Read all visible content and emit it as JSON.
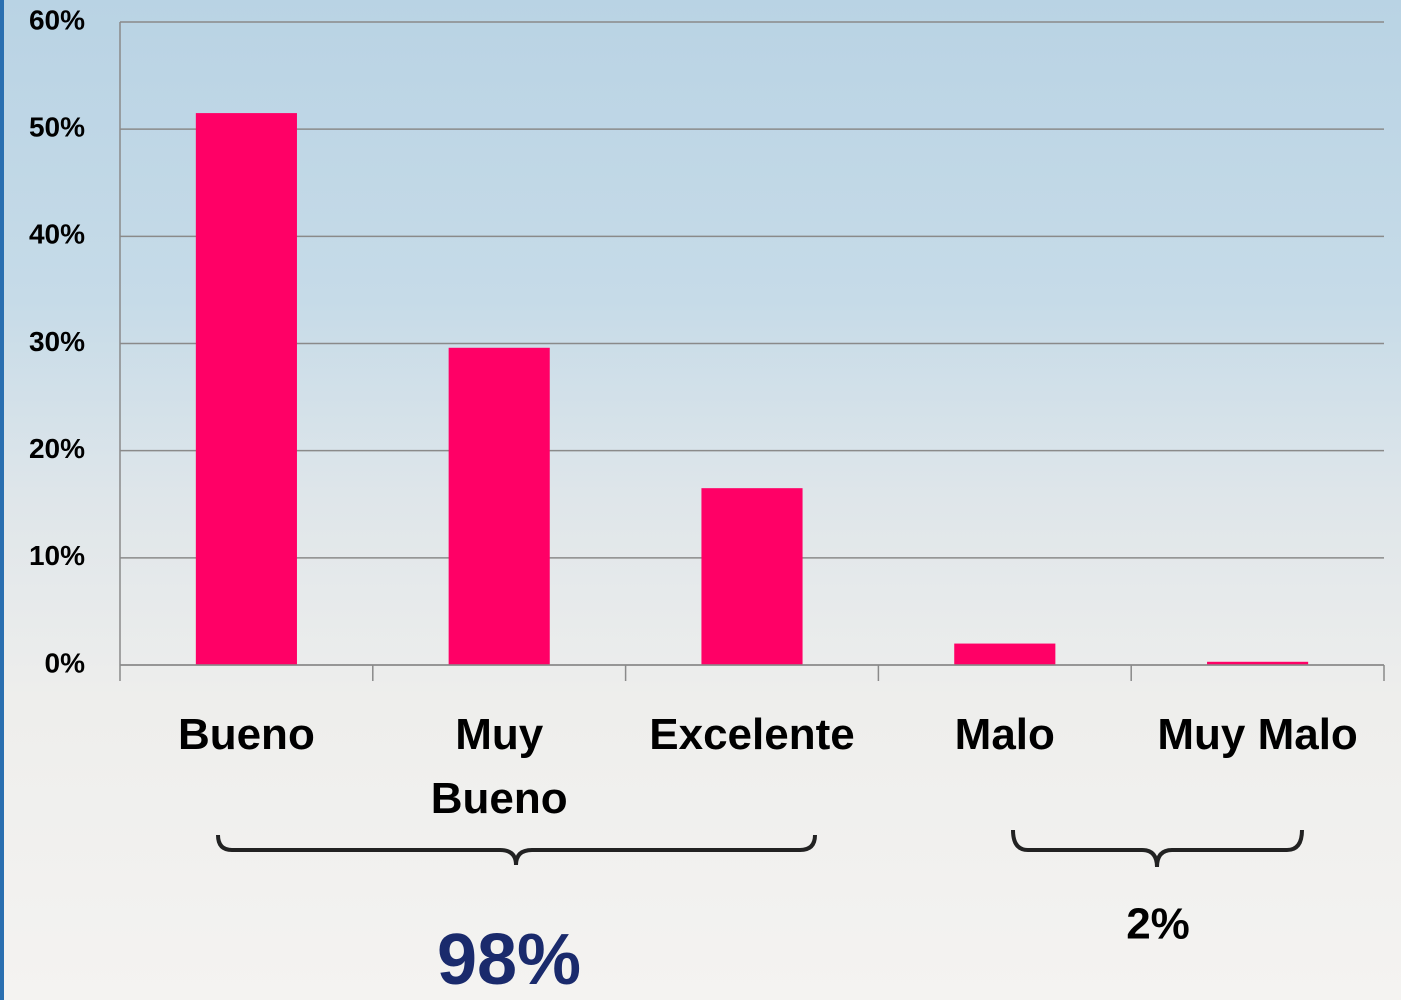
{
  "chart_data": {
    "type": "bar",
    "categories": [
      "Bueno",
      "Muy Bueno",
      "Excelente",
      "Malo",
      "Muy Malo"
    ],
    "values": [
      51.5,
      29.6,
      16.5,
      2,
      0.3
    ],
    "color": "#ff0066",
    "ylim": [
      0,
      60
    ],
    "yticks": [
      {
        "value": 0,
        "label": "0%"
      },
      {
        "value": 10,
        "label": "10%"
      },
      {
        "value": 20,
        "label": "20%"
      },
      {
        "value": 30,
        "label": "30%"
      },
      {
        "value": 40,
        "label": "40%"
      },
      {
        "value": 50,
        "label": "50%"
      },
      {
        "value": 60,
        "label": "60%"
      }
    ],
    "grid": true,
    "annotations": [
      "98%",
      "2%"
    ]
  }
}
